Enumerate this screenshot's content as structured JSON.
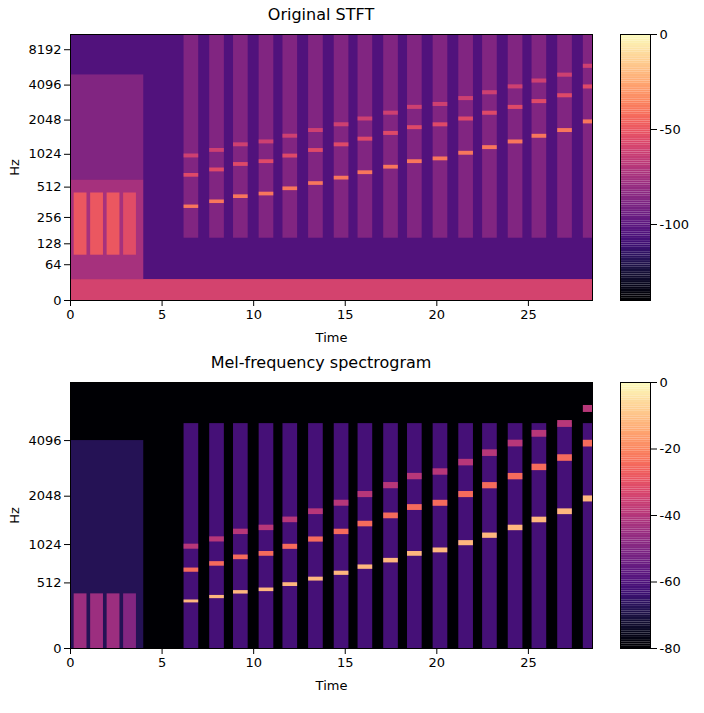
{
  "chart_data": [
    {
      "type": "heatmap",
      "title": "Original STFT",
      "x_label": "Time",
      "y_label": "Hz",
      "log": "y",
      "xlim": [
        0,
        28.5
      ],
      "xticks": [
        0,
        5,
        10,
        15,
        20,
        25
      ],
      "ylim": [
        0,
        11025
      ],
      "yticks": [
        0,
        64,
        128,
        256,
        512,
        1024,
        2048,
        4096,
        8192
      ],
      "colorbar": {
        "range": [
          -140,
          0
        ],
        "ticks": [
          0,
          -50,
          -100
        ]
      },
      "cells": [
        [
          0,
          28.5,
          0,
          11025,
          -105
        ],
        [
          0,
          28.5,
          0,
          32,
          -60
        ],
        [
          0,
          4,
          32,
          600,
          -75
        ],
        [
          0,
          4,
          600,
          5000,
          -88
        ],
        [
          0.2,
          0.9,
          90,
          450,
          -50
        ],
        [
          1.1,
          1.8,
          90,
          450,
          -50
        ],
        [
          2.0,
          2.7,
          90,
          450,
          -50
        ],
        [
          2.9,
          3.6,
          90,
          450,
          -55
        ],
        [
          6.2,
          7.0,
          150,
          11025,
          -88
        ],
        [
          6.2,
          7.0,
          950,
          1030,
          -62
        ],
        [
          6.2,
          7.0,
          634,
          686,
          -56
        ],
        [
          6.2,
          7.0,
          317,
          343,
          -40
        ],
        [
          7.6,
          8.4,
          150,
          11025,
          -88
        ],
        [
          7.6,
          8.4,
          1066,
          1154,
          -62
        ],
        [
          7.6,
          8.4,
          710,
          770,
          -56
        ],
        [
          7.6,
          8.4,
          355,
          385,
          -40
        ],
        [
          8.9,
          9.7,
          150,
          11025,
          -88
        ],
        [
          8.9,
          9.7,
          1195,
          1295,
          -62
        ],
        [
          8.9,
          9.7,
          797,
          863,
          -56
        ],
        [
          8.9,
          9.7,
          398,
          432,
          -40
        ],
        [
          10.3,
          11.1,
          150,
          11025,
          -88
        ],
        [
          10.3,
          11.1,
          1267,
          1373,
          -62
        ],
        [
          10.3,
          11.1,
          845,
          915,
          -56
        ],
        [
          10.3,
          11.1,
          422,
          458,
          -40
        ],
        [
          11.6,
          12.4,
          150,
          11025,
          -88
        ],
        [
          11.6,
          12.4,
          1423,
          1541,
          -62
        ],
        [
          11.6,
          12.4,
          948,
          1028,
          -56
        ],
        [
          11.6,
          12.4,
          474,
          514,
          -40
        ],
        [
          13.0,
          13.8,
          150,
          11025,
          -88
        ],
        [
          13.0,
          13.8,
          1596,
          1728,
          -62
        ],
        [
          13.0,
          13.8,
          1064,
          1152,
          -56
        ],
        [
          13.0,
          13.8,
          532,
          576,
          -40
        ],
        [
          14.4,
          15.2,
          150,
          11025,
          -88
        ],
        [
          14.4,
          15.2,
          1791,
          1941,
          -62
        ],
        [
          14.4,
          15.2,
          1194,
          1294,
          -56
        ],
        [
          14.4,
          15.2,
          597,
          647,
          -40
        ],
        [
          15.7,
          16.5,
          150,
          11025,
          -88
        ],
        [
          15.7,
          16.5,
          2010,
          2178,
          -62
        ],
        [
          15.7,
          16.5,
          1340,
          1452,
          -56
        ],
        [
          15.7,
          16.5,
          670,
          726,
          -40
        ],
        [
          17.1,
          17.9,
          150,
          11025,
          -88
        ],
        [
          17.1,
          17.9,
          2258,
          2446,
          -62
        ],
        [
          17.1,
          17.9,
          1505,
          1631,
          -56
        ],
        [
          17.1,
          17.9,
          753,
          815,
          -40
        ],
        [
          18.4,
          19.2,
          150,
          11025,
          -88
        ],
        [
          18.4,
          19.2,
          2534,
          2746,
          -62
        ],
        [
          18.4,
          19.2,
          1690,
          1830,
          -56
        ],
        [
          18.4,
          19.2,
          845,
          915,
          -40
        ],
        [
          19.8,
          20.6,
          150,
          11025,
          -88
        ],
        [
          19.8,
          20.6,
          2684,
          2908,
          -62
        ],
        [
          19.8,
          20.6,
          1789,
          1939,
          -56
        ],
        [
          19.8,
          20.6,
          895,
          969,
          -40
        ],
        [
          21.2,
          22.0,
          150,
          11025,
          -88
        ],
        [
          21.2,
          22.0,
          3015,
          3267,
          -62
        ],
        [
          21.2,
          22.0,
          2010,
          2178,
          -56
        ],
        [
          21.2,
          22.0,
          1005,
          1089,
          -40
        ],
        [
          22.5,
          23.3,
          150,
          11025,
          -88
        ],
        [
          22.5,
          23.3,
          3384,
          3666,
          -62
        ],
        [
          22.5,
          23.3,
          2256,
          2444,
          -56
        ],
        [
          22.5,
          23.3,
          1128,
          1222,
          -40
        ],
        [
          23.9,
          24.7,
          150,
          11025,
          -88
        ],
        [
          23.9,
          24.7,
          3799,
          4115,
          -62
        ],
        [
          23.9,
          24.7,
          2532,
          2744,
          -56
        ],
        [
          23.9,
          24.7,
          1266,
          1372,
          -40
        ],
        [
          25.2,
          26.0,
          150,
          11025,
          -88
        ],
        [
          25.2,
          26.0,
          4262,
          4618,
          -62
        ],
        [
          25.2,
          26.0,
          2842,
          3078,
          -56
        ],
        [
          25.2,
          26.0,
          1421,
          1539,
          -40
        ],
        [
          26.6,
          27.4,
          150,
          11025,
          -88
        ],
        [
          26.6,
          27.4,
          4784,
          5182,
          -62
        ],
        [
          26.6,
          27.4,
          3189,
          3455,
          -56
        ],
        [
          26.6,
          27.4,
          1595,
          1727,
          -40
        ],
        [
          28.0,
          28.8,
          150,
          11025,
          -88
        ],
        [
          28.0,
          28.8,
          5691,
          6165,
          -62
        ],
        [
          28.0,
          28.8,
          3794,
          4110,
          -56
        ],
        [
          28.0,
          28.8,
          1897,
          2055,
          -40
        ]
      ]
    },
    {
      "type": "heatmap",
      "title": "Mel-frequency spectrogram",
      "x_label": "Time",
      "y_label": "Hz",
      "log": "y",
      "xlim": [
        0,
        28.5
      ],
      "xticks": [
        0,
        5,
        10,
        15,
        20,
        25
      ],
      "ylim": [
        0,
        8000
      ],
      "yticks": [
        0,
        512,
        1024,
        2048,
        4096
      ],
      "colorbar": {
        "range": [
          -80,
          0
        ],
        "ticks": [
          0,
          -20,
          -40,
          -60,
          -80
        ]
      },
      "cells": [
        [
          0,
          28.5,
          0,
          8000,
          -80
        ],
        [
          0,
          4,
          0,
          4096,
          -68
        ],
        [
          0.2,
          0.9,
          0,
          400,
          -45
        ],
        [
          1.1,
          1.8,
          0,
          400,
          -45
        ],
        [
          2.0,
          2.7,
          0,
          400,
          -45
        ],
        [
          2.9,
          3.6,
          0,
          400,
          -50
        ],
        [
          6.2,
          7.0,
          0,
          5000,
          -62
        ],
        [
          6.2,
          7.0,
          950,
          1030,
          -40
        ],
        [
          6.2,
          7.0,
          634,
          686,
          -25
        ],
        [
          6.2,
          7.0,
          317,
          343,
          -12
        ],
        [
          7.6,
          8.4,
          0,
          5000,
          -62
        ],
        [
          7.6,
          8.4,
          1066,
          1154,
          -40
        ],
        [
          7.6,
          8.4,
          710,
          770,
          -25
        ],
        [
          7.6,
          8.4,
          355,
          385,
          -12
        ],
        [
          8.9,
          9.7,
          0,
          5000,
          -62
        ],
        [
          8.9,
          9.7,
          1195,
          1295,
          -40
        ],
        [
          8.9,
          9.7,
          797,
          863,
          -25
        ],
        [
          8.9,
          9.7,
          398,
          432,
          -12
        ],
        [
          10.3,
          11.1,
          0,
          5000,
          -62
        ],
        [
          10.3,
          11.1,
          1267,
          1373,
          -40
        ],
        [
          10.3,
          11.1,
          845,
          915,
          -25
        ],
        [
          10.3,
          11.1,
          422,
          458,
          -12
        ],
        [
          11.6,
          12.4,
          0,
          5000,
          -62
        ],
        [
          11.6,
          12.4,
          1423,
          1541,
          -40
        ],
        [
          11.6,
          12.4,
          948,
          1028,
          -25
        ],
        [
          11.6,
          12.4,
          474,
          514,
          -12
        ],
        [
          13.0,
          13.8,
          0,
          5000,
          -62
        ],
        [
          13.0,
          13.8,
          1596,
          1728,
          -40
        ],
        [
          13.0,
          13.8,
          1064,
          1152,
          -25
        ],
        [
          13.0,
          13.8,
          532,
          576,
          -12
        ],
        [
          14.4,
          15.2,
          0,
          5000,
          -62
        ],
        [
          14.4,
          15.2,
          1791,
          1941,
          -40
        ],
        [
          14.4,
          15.2,
          1194,
          1294,
          -25
        ],
        [
          14.4,
          15.2,
          597,
          647,
          -12
        ],
        [
          15.7,
          16.5,
          0,
          5000,
          -62
        ],
        [
          15.7,
          16.5,
          2010,
          2178,
          -40
        ],
        [
          15.7,
          16.5,
          1340,
          1452,
          -25
        ],
        [
          15.7,
          16.5,
          670,
          726,
          -12
        ],
        [
          17.1,
          17.9,
          0,
          5000,
          -62
        ],
        [
          17.1,
          17.9,
          2258,
          2446,
          -40
        ],
        [
          17.1,
          17.9,
          1505,
          1631,
          -25
        ],
        [
          17.1,
          17.9,
          753,
          815,
          -12
        ],
        [
          18.4,
          19.2,
          0,
          5000,
          -62
        ],
        [
          18.4,
          19.2,
          2534,
          2746,
          -40
        ],
        [
          18.4,
          19.2,
          1690,
          1830,
          -25
        ],
        [
          18.4,
          19.2,
          845,
          915,
          -12
        ],
        [
          19.8,
          20.6,
          0,
          5000,
          -62
        ],
        [
          19.8,
          20.6,
          2684,
          2908,
          -40
        ],
        [
          19.8,
          20.6,
          1789,
          1939,
          -25
        ],
        [
          19.8,
          20.6,
          895,
          969,
          -12
        ],
        [
          21.2,
          22.0,
          0,
          5000,
          -62
        ],
        [
          21.2,
          22.0,
          3015,
          3267,
          -40
        ],
        [
          21.2,
          22.0,
          2010,
          2178,
          -25
        ],
        [
          21.2,
          22.0,
          1005,
          1089,
          -12
        ],
        [
          22.5,
          23.3,
          0,
          5000,
          -62
        ],
        [
          22.5,
          23.3,
          3384,
          3666,
          -40
        ],
        [
          22.5,
          23.3,
          2256,
          2444,
          -25
        ],
        [
          22.5,
          23.3,
          1128,
          1222,
          -12
        ],
        [
          23.9,
          24.7,
          0,
          5000,
          -62
        ],
        [
          23.9,
          24.7,
          3799,
          4115,
          -40
        ],
        [
          23.9,
          24.7,
          2532,
          2744,
          -25
        ],
        [
          23.9,
          24.7,
          1266,
          1372,
          -12
        ],
        [
          25.2,
          26.0,
          0,
          5000,
          -62
        ],
        [
          25.2,
          26.0,
          4262,
          4618,
          -40
        ],
        [
          25.2,
          26.0,
          2842,
          3078,
          -25
        ],
        [
          25.2,
          26.0,
          1421,
          1539,
          -12
        ],
        [
          26.6,
          27.4,
          0,
          5000,
          -62
        ],
        [
          26.6,
          27.4,
          4784,
          5182,
          -40
        ],
        [
          26.6,
          27.4,
          3189,
          3455,
          -25
        ],
        [
          26.6,
          27.4,
          1595,
          1727,
          -12
        ],
        [
          28.0,
          28.8,
          0,
          5000,
          -62
        ],
        [
          28.0,
          28.8,
          5691,
          6165,
          -40
        ],
        [
          28.0,
          28.8,
          3794,
          4110,
          -25
        ],
        [
          28.0,
          28.8,
          1897,
          2055,
          -12
        ]
      ]
    }
  ]
}
